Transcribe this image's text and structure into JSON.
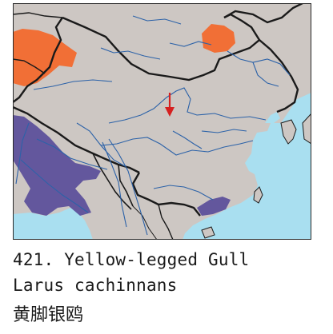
{
  "caption": {
    "number_and_name": "421. Yellow-legged Gull",
    "scientific_name": "Larus cachinnans",
    "chinese_name": "黄脚银鸥"
  },
  "map": {
    "colors": {
      "land": "#cdc7c3",
      "sea": "#a9dff0",
      "river": "#2c62a8",
      "border": "#1a1a1a",
      "breeding_range": "#f26a2e",
      "winter_range": "#5a4d9a",
      "marker": "#d62020"
    },
    "legend_meaning": {
      "orange": "breeding range",
      "purple": "winter range",
      "red-arrow": "isolated record"
    }
  }
}
